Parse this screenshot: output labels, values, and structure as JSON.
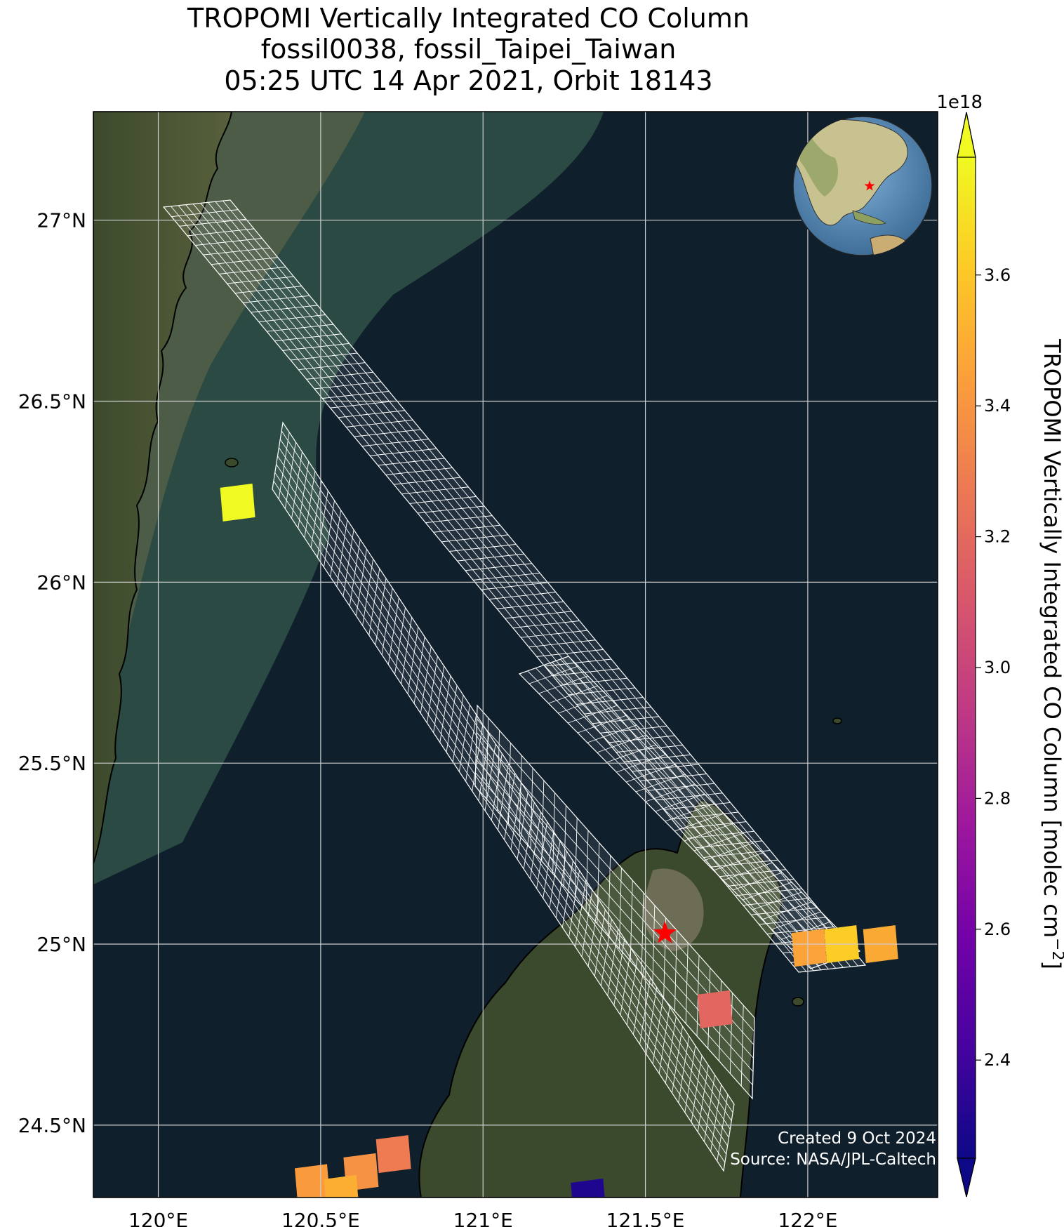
{
  "title": {
    "line1": "TROPOMI Vertically Integrated CO Column",
    "line2": "fossil0038, fossil_Taipei_Taiwan",
    "line3": "05:25 UTC 14 Apr 2021, Orbit 18143"
  },
  "map": {
    "lon_range": [
      119.8,
      122.4
    ],
    "lat_range": [
      24.3,
      27.3
    ],
    "lon_ticks": [
      {
        "value": 120.0,
        "label": "120°E"
      },
      {
        "value": 120.5,
        "label": "120.5°E"
      },
      {
        "value": 121.0,
        "label": "121°E"
      },
      {
        "value": 121.5,
        "label": "121.5°E"
      },
      {
        "value": 122.0,
        "label": "122°E"
      }
    ],
    "lat_ticks": [
      {
        "value": 27.0,
        "label": "27°N"
      },
      {
        "value": 26.5,
        "label": "26.5°N"
      },
      {
        "value": 26.0,
        "label": "26°N"
      },
      {
        "value": 25.5,
        "label": "25.5°N"
      },
      {
        "value": 25.0,
        "label": "25°N"
      },
      {
        "value": 24.5,
        "label": "24.5°N"
      }
    ],
    "site": {
      "lon": 121.56,
      "lat": 25.03,
      "marker": "red-star-icon",
      "color": "#ff0000"
    },
    "gridlines": true,
    "ocean_color": "#0f1f2c",
    "credit_line1": "Created 9 Oct 2024",
    "credit_line2": "Source: NASA/JPL-Caltech",
    "inset_globe": {
      "position": "top-right",
      "marker": "red-star-icon"
    }
  },
  "chart_data": {
    "type": "heatmap",
    "variable": "TROPOMI Vertically Integrated CO Column",
    "units": "molec cm^-2",
    "scale_factor": "1e18",
    "colormap": "plasma",
    "vmin": 2.25,
    "vmax": 3.78,
    "extend": "both",
    "pixels": [
      {
        "lon": 120.24,
        "lat": 26.22,
        "value": 3.78
      },
      {
        "lon": 121.71,
        "lat": 24.82,
        "value": 3.18
      },
      {
        "lon": 122.0,
        "lat": 24.99,
        "value": 3.45
      },
      {
        "lon": 122.1,
        "lat": 25.0,
        "value": 3.62
      },
      {
        "lon": 122.22,
        "lat": 25.0,
        "value": 3.48
      },
      {
        "lon": 120.47,
        "lat": 24.34,
        "value": 3.42
      },
      {
        "lon": 120.62,
        "lat": 24.37,
        "value": 3.38
      },
      {
        "lon": 120.72,
        "lat": 24.42,
        "value": 3.28
      },
      {
        "lon": 120.56,
        "lat": 24.31,
        "value": 3.5
      },
      {
        "lon": 121.32,
        "lat": 24.3,
        "value": 2.3
      }
    ]
  },
  "colorbar": {
    "label": "TROPOMI Vertically Integrated CO Column [molec cm",
    "label_sup": "−2",
    "label_end": "]",
    "offset_label": "1e18",
    "ticks": [
      {
        "value": 2.4,
        "label": "2.4"
      },
      {
        "value": 2.6,
        "label": "2.6"
      },
      {
        "value": 2.8,
        "label": "2.8"
      },
      {
        "value": 3.0,
        "label": "3.0"
      },
      {
        "value": 3.2,
        "label": "3.2"
      },
      {
        "value": 3.4,
        "label": "3.4"
      },
      {
        "value": 3.6,
        "label": "3.6"
      }
    ],
    "colormap_stops": [
      "#0d0887",
      "#46039f",
      "#7201a8",
      "#9c179e",
      "#bd3786",
      "#d8576b",
      "#ed7953",
      "#fb9f3a",
      "#fdca26",
      "#f0f921"
    ]
  }
}
